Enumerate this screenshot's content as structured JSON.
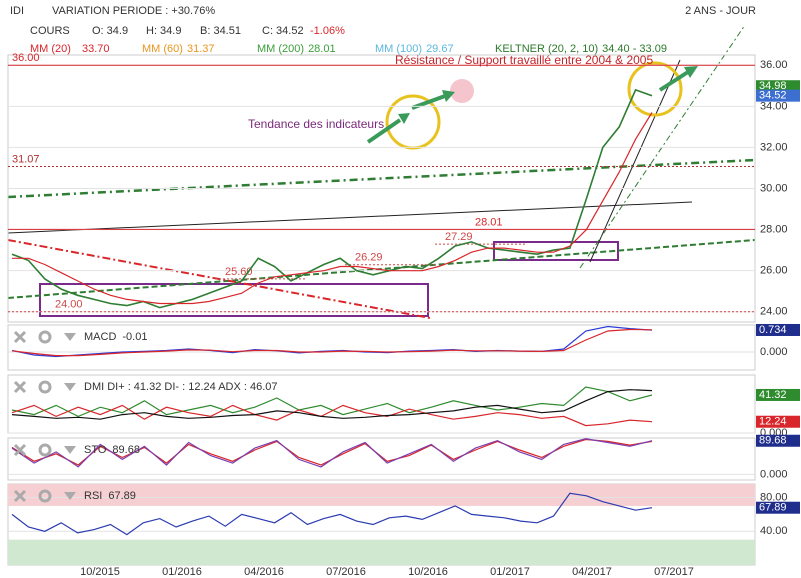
{
  "header": {
    "symbol": "IDI",
    "variation": "VARIATION PERIODE : +30.76%",
    "period": "2 ANS - JOUR"
  },
  "quote": {
    "open": "O: 34.9",
    "high": "H: 34.9",
    "low": "B: 34.51",
    "close": "C: 34.52",
    "change": "-1.06%"
  },
  "indicators": [
    {
      "name": "MM (60)",
      "value": "31.37",
      "color": "#e8961e"
    },
    {
      "name": "MM (200)",
      "value": "28.01",
      "color": "#3aa03a"
    },
    {
      "name": "MM (100)",
      "value": "29.67",
      "color": "#5bb7e0"
    },
    {
      "name": "KELTNER (20, 2, 10)",
      "value": "34.40 - 33.09",
      "color": "#2a7a2a"
    }
  ],
  "chart_data": [
    {
      "type": "line",
      "series": [
        {
          "name": "COURS",
          "color": "#2e7d32",
          "values": [
            26.8,
            26.5,
            25.6,
            25.1,
            24.8,
            24.6,
            24.4,
            24.3,
            24.5,
            24.2,
            24.4,
            24.6,
            24.9,
            25.2,
            25.5,
            26.6,
            26.2,
            25.5,
            25.9,
            26.3,
            26.6,
            26.0,
            25.8,
            26.0,
            26.2,
            26.1,
            26.6,
            27.2,
            27.4,
            27.1,
            27.0,
            26.9,
            26.8,
            27.0,
            27.1,
            29.5,
            32.0,
            33.0,
            34.8,
            34.52
          ]
        },
        {
          "name": "MM (20)",
          "value_label": "33.70",
          "color": "#d9262b",
          "values": [
            26.6,
            26.6,
            26.3,
            25.9,
            25.5,
            25.1,
            24.8,
            24.6,
            24.5,
            24.4,
            24.4,
            24.4,
            24.5,
            24.7,
            24.9,
            25.4,
            25.7,
            25.8,
            25.9,
            26.0,
            26.2,
            26.2,
            26.1,
            26.0,
            26.0,
            26.0,
            26.2,
            26.5,
            26.9,
            27.1,
            27.1,
            27.0,
            26.9,
            26.9,
            27.2,
            28.0,
            29.4,
            30.8,
            32.4,
            33.7
          ]
        }
      ],
      "ylim": [
        23.5,
        36.5
      ],
      "yticks": [
        {
          "value": 24,
          "label": "24.00"
        },
        {
          "value": 26,
          "label": "26.00"
        },
        {
          "value": 28,
          "label": "28.00"
        },
        {
          "value": 30,
          "label": "30.00"
        },
        {
          "value": 32,
          "label": "32.00"
        },
        {
          "value": 34,
          "label": "34.00"
        },
        {
          "value": 36,
          "label": "36.00"
        }
      ],
      "levels": [
        {
          "value": 36,
          "label": "36.00",
          "color": "#d9262b"
        },
        {
          "value": 31.07,
          "label": "31.07",
          "color": "#b03030"
        },
        {
          "value": 28.01,
          "label": "28.01",
          "color": "#d9262b"
        },
        {
          "value": 27.29,
          "label": "27.29",
          "color": "#d04848"
        },
        {
          "value": 26.29,
          "label": "26.29",
          "color": "#d04848"
        },
        {
          "value": 25.6,
          "label": "25.60",
          "color": "#d04848"
        },
        {
          "value": 24,
          "label": "24.00",
          "color": "#d04848"
        }
      ],
      "annotations": [
        "Résistance / Support travaillé entre 2004 & 2005",
        "Tendance des indicateurs"
      ],
      "tags": [
        {
          "value": 34.98,
          "label": "34.98",
          "color": "#2e8b2e"
        },
        {
          "value": 34.52,
          "label": "34.52",
          "color": "#3d6fd1"
        }
      ],
      "xticks": [
        "10/2015",
        "01/2016",
        "04/2016",
        "07/2016",
        "10/2016",
        "01/2017",
        "04/2017",
        "07/2017"
      ]
    },
    {
      "type": "line",
      "title": "MACD",
      "title_value": "-0.01",
      "ylim": [
        -0.6,
        0.9
      ],
      "yticks": [
        {
          "value": 0,
          "label": "0.000"
        }
      ],
      "tags": [
        {
          "value": 0.734,
          "label": "0.734",
          "color": "#1f2d8c"
        }
      ],
      "series": [
        {
          "color": "#2b3bd6",
          "values": [
            0.05,
            -0.1,
            -0.15,
            -0.1,
            -0.05,
            0,
            0.02,
            0.05,
            0.1,
            0.05,
            -0.02,
            0.08,
            0.04,
            -0.03,
            0.02,
            0.05,
            0,
            -0.02,
            0.03,
            0.05,
            0.08,
            0.02,
            0.05,
            0.03,
            0.02,
            0.1,
            0.7,
            0.85,
            0.78,
            0.73
          ]
        },
        {
          "color": "#d9262b",
          "values": [
            0.04,
            -0.05,
            -0.12,
            -0.12,
            -0.08,
            -0.03,
            0,
            0.03,
            0.07,
            0.06,
            0.01,
            0.05,
            0.05,
            0,
            0,
            0.03,
            0.02,
            0,
            0.01,
            0.03,
            0.06,
            0.04,
            0.04,
            0.03,
            0.02,
            0.05,
            0.4,
            0.7,
            0.75,
            0.74
          ]
        }
      ]
    },
    {
      "type": "line",
      "title": "DMI DI+ : 41.32 DI- : 12.24 ADX : 46.07",
      "ylim": [
        0,
        63
      ],
      "yticks": [
        {
          "value": 0,
          "label": "0.000"
        }
      ],
      "tags": [
        {
          "value": 41.32,
          "label": "41.32",
          "color": "#2e8b2e"
        },
        {
          "value": 12.24,
          "label": "12.24",
          "color": "#d9262b"
        }
      ],
      "series": [
        {
          "color": "#2e8b2e",
          "values": [
            25,
            20,
            30,
            18,
            28,
            22,
            35,
            20,
            25,
            30,
            22,
            28,
            38,
            25,
            30,
            20,
            26,
            32,
            22,
            28,
            35,
            30,
            25,
            28,
            32,
            30,
            50,
            45,
            35,
            41.32
          ]
        },
        {
          "color": "#d9262b",
          "values": [
            22,
            30,
            18,
            28,
            20,
            30,
            15,
            28,
            22,
            18,
            30,
            20,
            14,
            25,
            18,
            30,
            22,
            18,
            26,
            20,
            15,
            18,
            22,
            20,
            16,
            18,
            8,
            10,
            14,
            12.24
          ]
        },
        {
          "color": "#111111",
          "values": [
            20,
            18,
            16,
            17,
            15,
            20,
            22,
            18,
            16,
            17,
            19,
            20,
            24,
            22,
            18,
            16,
            17,
            19,
            20,
            22,
            24,
            28,
            30,
            26,
            22,
            24,
            35,
            45,
            47,
            46.07
          ]
        }
      ]
    },
    {
      "type": "line",
      "title": "STO",
      "title_value": "89.68",
      "ylim": [
        -15,
        97
      ],
      "yticks": [
        {
          "value": 0,
          "label": "0.000"
        }
      ],
      "tags": [
        {
          "value": 89.68,
          "label": "89.68",
          "color": "#1f2d8c"
        }
      ],
      "series": [
        {
          "color": "#d9262b",
          "values": [
            72,
            35,
            55,
            25,
            75,
            45,
            72,
            30,
            80,
            55,
            35,
            65,
            88,
            45,
            25,
            55,
            82,
            35,
            50,
            78,
            40,
            65,
            88,
            65,
            45,
            75,
            93,
            88,
            78,
            88
          ]
        },
        {
          "color": "#7a3fb0",
          "values": [
            70,
            30,
            60,
            20,
            80,
            40,
            75,
            25,
            85,
            50,
            30,
            70,
            90,
            40,
            20,
            60,
            85,
            30,
            55,
            80,
            35,
            70,
            90,
            60,
            40,
            80,
            95,
            85,
            75,
            89.68
          ]
        }
      ]
    },
    {
      "type": "line",
      "title": "RSI",
      "title_value": "67.89",
      "ylim": [
        0,
        96
      ],
      "overbought": 70,
      "oversold": 30,
      "yticks": [
        {
          "value": 40,
          "label": "40.00"
        },
        {
          "value": 80,
          "label": "80.00"
        }
      ],
      "tags": [
        {
          "value": 67.89,
          "label": "67.89",
          "color": "#1f2d8c"
        }
      ],
      "series": [
        {
          "color": "#2b3bb0",
          "values": [
            60,
            45,
            40,
            50,
            38,
            42,
            48,
            36,
            50,
            55,
            45,
            52,
            58,
            46,
            60,
            55,
            50,
            62,
            48,
            55,
            60,
            52,
            48,
            56,
            58,
            54,
            62,
            70,
            60,
            58,
            56,
            52,
            50,
            58,
            85,
            82,
            75,
            70,
            65,
            67.89
          ]
        }
      ]
    }
  ]
}
